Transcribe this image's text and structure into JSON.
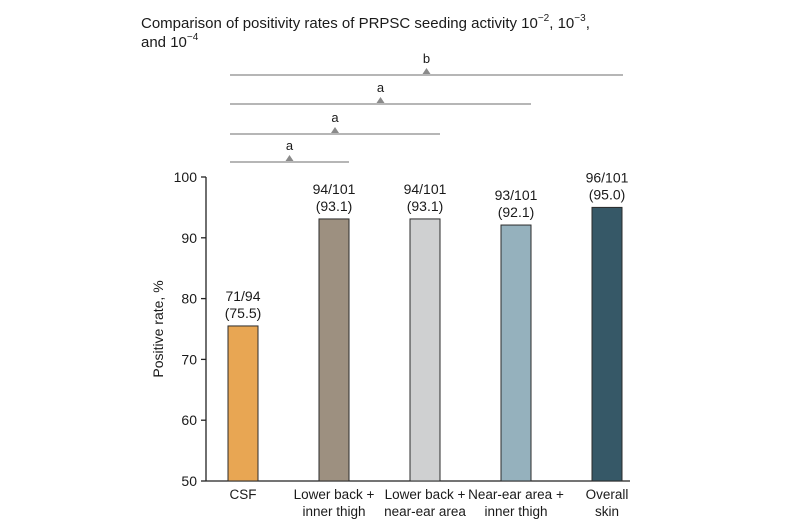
{
  "chart_data": {
    "type": "bar",
    "title_parts": [
      {
        "text": "Comparison of positivity rates of PRPSC seeding activity 10"
      },
      {
        "text": "−2",
        "sup": true
      },
      {
        "text": ", 10"
      },
      {
        "text": "−3",
        "sup": true
      },
      {
        "text": ","
      },
      {
        "br": true
      },
      {
        "text": "and 10"
      },
      {
        "text": "−4",
        "sup": true
      }
    ],
    "ylabel": "Positive rate, %",
    "ylim": [
      50,
      100
    ],
    "yticks": [
      50,
      60,
      70,
      80,
      90,
      100
    ],
    "categories": [
      [
        "CSF"
      ],
      [
        "Lower back +",
        "inner thigh"
      ],
      [
        "Lower back +",
        "near-ear area"
      ],
      [
        "Near-ear area +",
        "inner thigh"
      ],
      [
        "Overall",
        "skin"
      ]
    ],
    "values": [
      75.5,
      93.1,
      93.1,
      92.1,
      95.0
    ],
    "data_labels": [
      [
        "71/94",
        "(75.5)"
      ],
      [
        "94/101",
        "(93.1)"
      ],
      [
        "94/101",
        "(93.1)"
      ],
      [
        "93/101",
        "(92.1)"
      ],
      [
        "96/101",
        "(95.0)"
      ]
    ],
    "colors": [
      "#e8a653",
      "#9d9080",
      "#cfd0d1",
      "#95b1bd",
      "#365867"
    ],
    "comparisons": [
      {
        "from": 0,
        "to": 1,
        "label": "a"
      },
      {
        "from": 0,
        "to": 2,
        "label": "a"
      },
      {
        "from": 0,
        "to": 3,
        "label": "a"
      },
      {
        "from": 0,
        "to": 4,
        "label": "b"
      }
    ],
    "grid": false,
    "legend": "none"
  }
}
